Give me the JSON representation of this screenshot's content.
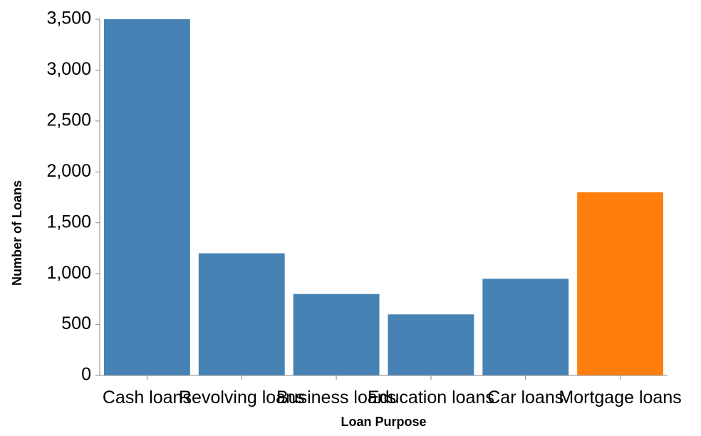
{
  "chart_data": {
    "type": "bar",
    "categories": [
      "Cash loans",
      "Revolving loans",
      "Business loans",
      "Education loans",
      "Car loans",
      "Mortgage loans"
    ],
    "values": [
      3500,
      1200,
      800,
      600,
      950,
      1800
    ],
    "bar_colors": [
      "#4682b4",
      "#4682b4",
      "#4682b4",
      "#4682b4",
      "#4682b4",
      "#ff7f0e"
    ],
    "xlabel": "Loan Purpose",
    "ylabel": "Number of Loans",
    "ylim": [
      0,
      3500
    ],
    "yticks": [
      0,
      500,
      1000,
      1500,
      2000,
      2500,
      3000,
      3500
    ],
    "ytick_labels": [
      "0",
      "500",
      "1,000",
      "1,500",
      "2,000",
      "2,500",
      "3,000",
      "3,500"
    ],
    "grid": false,
    "legend": "none"
  }
}
